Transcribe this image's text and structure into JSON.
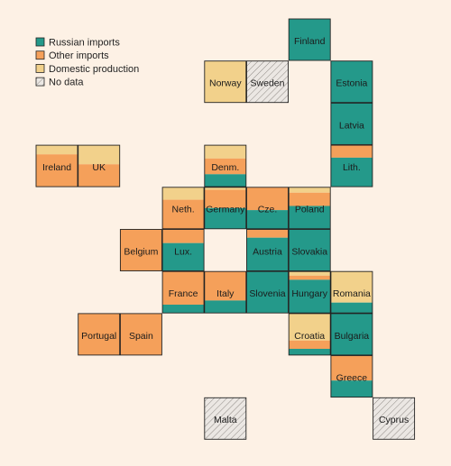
{
  "colors": {
    "background": "#fdf1e5",
    "russian": "#24998a",
    "other": "#f5a05a",
    "domestic": "#f2d18b",
    "nodata": "#ebe7e3",
    "border": "#222222"
  },
  "chart_data": {
    "type": "tile-map",
    "legend_placement": "top-left",
    "legend": [
      {
        "key": "russian",
        "label": "Russian imports"
      },
      {
        "key": "other",
        "label": "Other imports"
      },
      {
        "key": "domestic",
        "label": "Domestic production"
      },
      {
        "key": "nodata",
        "label": "No data"
      }
    ],
    "countries": [
      {
        "name": "Finland",
        "col": 6,
        "row": 0,
        "russian": 100,
        "other": 0,
        "domestic": 0
      },
      {
        "name": "Norway",
        "col": 4,
        "row": 1,
        "russian": 0,
        "other": 0,
        "domestic": 100
      },
      {
        "name": "Sweden",
        "col": 5,
        "row": 1,
        "nodata": true
      },
      {
        "name": "Estonia",
        "col": 7,
        "row": 1,
        "russian": 100,
        "other": 0,
        "domestic": 0
      },
      {
        "name": "Latvia",
        "col": 7,
        "row": 2,
        "russian": 100,
        "other": 0,
        "domestic": 0
      },
      {
        "name": "Ireland",
        "col": 0,
        "row": 3,
        "russian": 0,
        "other": 78,
        "domestic": 22
      },
      {
        "name": "UK",
        "col": 1,
        "row": 3,
        "russian": 0,
        "other": 54,
        "domestic": 46
      },
      {
        "name": "Denm.",
        "col": 4,
        "row": 3,
        "russian": 30,
        "other": 38,
        "domestic": 32
      },
      {
        "name": "Lith.",
        "col": 7,
        "row": 3,
        "russian": 70,
        "other": 30,
        "domestic": 0
      },
      {
        "name": "Neth.",
        "col": 3,
        "row": 4,
        "russian": 0,
        "other": 70,
        "domestic": 30
      },
      {
        "name": "Germany",
        "col": 4,
        "row": 4,
        "russian": 50,
        "other": 44,
        "domestic": 6
      },
      {
        "name": "Cze.",
        "col": 5,
        "row": 4,
        "russian": 45,
        "other": 55,
        "domestic": 0
      },
      {
        "name": "Poland",
        "col": 6,
        "row": 4,
        "russian": 55,
        "other": 32,
        "domestic": 13
      },
      {
        "name": "Belgium",
        "col": 2,
        "row": 5,
        "russian": 0,
        "other": 100,
        "domestic": 0
      },
      {
        "name": "Lux.",
        "col": 3,
        "row": 5,
        "russian": 67,
        "other": 33,
        "domestic": 0
      },
      {
        "name": "Austria",
        "col": 5,
        "row": 5,
        "russian": 80,
        "other": 20,
        "domestic": 0
      },
      {
        "name": "Slovakia",
        "col": 6,
        "row": 5,
        "russian": 100,
        "other": 0,
        "domestic": 0
      },
      {
        "name": "France",
        "col": 3,
        "row": 6,
        "russian": 20,
        "other": 80,
        "domestic": 0
      },
      {
        "name": "Italy",
        "col": 4,
        "row": 6,
        "russian": 30,
        "other": 70,
        "domestic": 0
      },
      {
        "name": "Slovenia",
        "col": 5,
        "row": 6,
        "russian": 100,
        "other": 0,
        "domestic": 0
      },
      {
        "name": "Hungary",
        "col": 6,
        "row": 6,
        "russian": 80,
        "other": 10,
        "domestic": 10
      },
      {
        "name": "Romania",
        "col": 7,
        "row": 6,
        "russian": 25,
        "other": 0,
        "domestic": 75
      },
      {
        "name": "Portugal",
        "col": 1,
        "row": 7,
        "russian": 0,
        "other": 100,
        "domestic": 0
      },
      {
        "name": "Spain",
        "col": 2,
        "row": 7,
        "russian": 0,
        "other": 100,
        "domestic": 0
      },
      {
        "name": "Croatia",
        "col": 6,
        "row": 7,
        "russian": 15,
        "other": 20,
        "domestic": 65
      },
      {
        "name": "Bulgaria",
        "col": 7,
        "row": 7,
        "russian": 100,
        "other": 0,
        "domestic": 0
      },
      {
        "name": "Greece",
        "col": 7,
        "row": 8,
        "russian": 40,
        "other": 60,
        "domestic": 0
      },
      {
        "name": "Malta",
        "col": 4,
        "row": 9,
        "nodata": true
      },
      {
        "name": "Cyprus",
        "col": 8,
        "row": 9,
        "nodata": true
      }
    ]
  }
}
